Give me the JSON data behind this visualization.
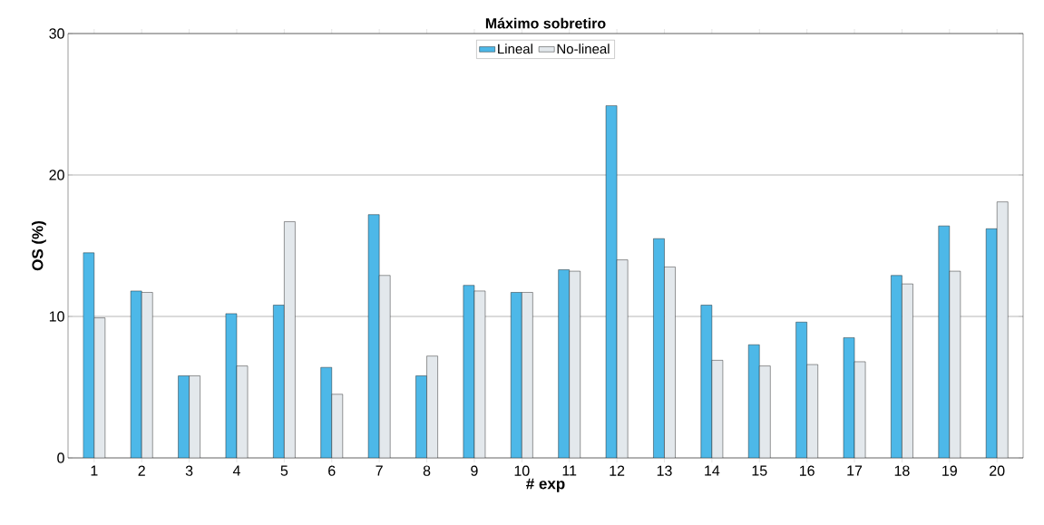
{
  "chart_data": {
    "type": "bar",
    "title": "Máximo sobretiro",
    "xlabel": "# exp",
    "ylabel": "OS (%)",
    "categories": [
      "1",
      "2",
      "3",
      "4",
      "5",
      "6",
      "7",
      "8",
      "9",
      "10",
      "11",
      "12",
      "13",
      "14",
      "15",
      "16",
      "17",
      "18",
      "19",
      "20"
    ],
    "series": [
      {
        "name": "Lineal",
        "color": "#4db8e8",
        "values": [
          14.5,
          11.8,
          5.8,
          10.2,
          10.8,
          6.4,
          17.2,
          5.8,
          12.2,
          11.7,
          13.3,
          24.9,
          15.5,
          10.8,
          8.0,
          9.6,
          8.5,
          12.9,
          16.4,
          16.2
        ]
      },
      {
        "name": "No-lineal",
        "color": "#e3e8ec",
        "values": [
          9.9,
          11.7,
          5.8,
          6.5,
          16.7,
          4.5,
          12.9,
          7.2,
          11.8,
          11.7,
          13.2,
          14.0,
          13.5,
          6.9,
          6.5,
          6.6,
          6.8,
          12.3,
          13.2,
          18.1
        ]
      }
    ],
    "ylim": [
      0,
      30
    ],
    "yticks": [
      0,
      10,
      20,
      30
    ],
    "grid": "y",
    "legend": "top"
  }
}
